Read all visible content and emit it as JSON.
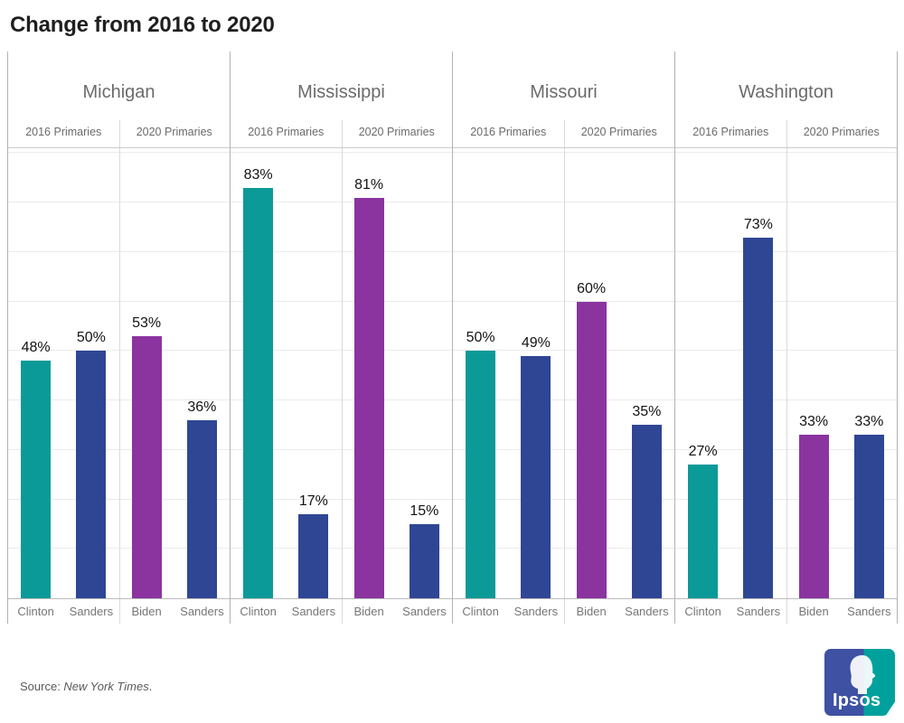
{
  "title": "Change from 2016 to 2020",
  "source": {
    "prefix": "Source: ",
    "name": "New York Times",
    "suffix": "."
  },
  "logo": {
    "text": "Ipsos",
    "blue": "#3E51A2",
    "teal": "#00A19C"
  },
  "colors": {
    "clinton_teal": "#0B9A98",
    "sanders_blue": "#2F4694",
    "biden_purple": "#8B34A0",
    "gridline": "#ebebeb",
    "divider": "#b2b2b2",
    "text_gray": "#6b6b6b"
  },
  "chart_data": {
    "type": "bar",
    "title": "Change from 2016 to 2020",
    "unit": "%",
    "ylim": [
      0,
      91
    ],
    "grid": "horizontal gridlines every 10%, no y-axis tick labels",
    "legend": "none (bars labeled directly)",
    "states": [
      {
        "name": "Michigan",
        "groups": [
          {
            "label": "2016 Primaries",
            "bars": [
              {
                "candidate": "Clinton",
                "value": 48,
                "label": "48%",
                "color_key": "clinton_teal"
              },
              {
                "candidate": "Sanders",
                "value": 50,
                "label": "50%",
                "color_key": "sanders_blue"
              }
            ]
          },
          {
            "label": "2020 Primaries",
            "bars": [
              {
                "candidate": "Biden",
                "value": 53,
                "label": "53%",
                "color_key": "biden_purple"
              },
              {
                "candidate": "Sanders",
                "value": 36,
                "label": "36%",
                "color_key": "sanders_blue"
              }
            ]
          }
        ]
      },
      {
        "name": "Mississippi",
        "groups": [
          {
            "label": "2016 Primaries",
            "bars": [
              {
                "candidate": "Clinton",
                "value": 83,
                "label": "83%",
                "color_key": "clinton_teal"
              },
              {
                "candidate": "Sanders",
                "value": 17,
                "label": "17%",
                "color_key": "sanders_blue"
              }
            ]
          },
          {
            "label": "2020 Primaries",
            "bars": [
              {
                "candidate": "Biden",
                "value": 81,
                "label": "81%",
                "color_key": "biden_purple"
              },
              {
                "candidate": "Sanders",
                "value": 15,
                "label": "15%",
                "color_key": "sanders_blue"
              }
            ]
          }
        ]
      },
      {
        "name": "Missouri",
        "groups": [
          {
            "label": "2016 Primaries",
            "bars": [
              {
                "candidate": "Clinton",
                "value": 50,
                "label": "50%",
                "color_key": "clinton_teal"
              },
              {
                "candidate": "Sanders",
                "value": 49,
                "label": "49%",
                "color_key": "sanders_blue"
              }
            ]
          },
          {
            "label": "2020 Primaries",
            "bars": [
              {
                "candidate": "Biden",
                "value": 60,
                "label": "60%",
                "color_key": "biden_purple"
              },
              {
                "candidate": "Sanders",
                "value": 35,
                "label": "35%",
                "color_key": "sanders_blue"
              }
            ]
          }
        ]
      },
      {
        "name": "Washington",
        "groups": [
          {
            "label": "2016 Primaries",
            "bars": [
              {
                "candidate": "Clinton",
                "value": 27,
                "label": "27%",
                "color_key": "clinton_teal"
              },
              {
                "candidate": "Sanders",
                "value": 73,
                "label": "73%",
                "color_key": "sanders_blue"
              }
            ]
          },
          {
            "label": "2020 Primaries",
            "bars": [
              {
                "candidate": "Biden",
                "value": 33,
                "label": "33%",
                "color_key": "biden_purple"
              },
              {
                "candidate": "Sanders",
                "value": 33,
                "label": "33%",
                "color_key": "sanders_blue"
              }
            ]
          }
        ]
      }
    ]
  }
}
